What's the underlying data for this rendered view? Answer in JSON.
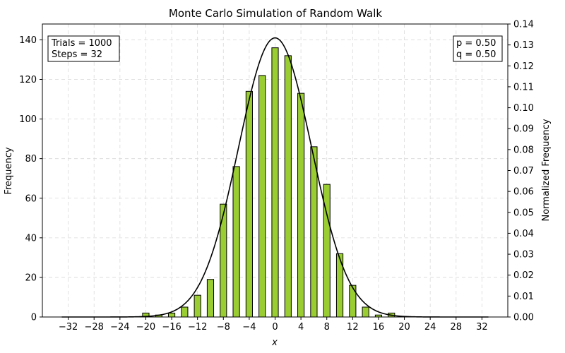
{
  "chart_data": {
    "type": "bar",
    "title": "Monte Carlo Simulation of Random Walk",
    "xlabel": "x",
    "ylabel": "Frequency",
    "ylabel_right": "Normalized Frequency",
    "xlim": [
      -36,
      36
    ],
    "ylim": [
      0,
      148
    ],
    "ylim_right": [
      0,
      0.14
    ],
    "x_ticks": [
      -32,
      -28,
      -24,
      -20,
      -16,
      -12,
      -8,
      -4,
      0,
      4,
      8,
      12,
      16,
      20,
      24,
      28,
      32
    ],
    "y_ticks": [
      0,
      20,
      40,
      60,
      80,
      100,
      120,
      140
    ],
    "y_ticks_right": [
      "0.00",
      "0.01",
      "0.02",
      "0.03",
      "0.04",
      "0.05",
      "0.06",
      "0.07",
      "0.08",
      "0.09",
      "0.10",
      "0.11",
      "0.12",
      "0.13",
      "0.14"
    ],
    "grid": true,
    "bar_color": "#9acd32",
    "curve_color": "#000000",
    "histogram": {
      "x": [
        -20,
        -18,
        -16,
        -14,
        -12,
        -10,
        -8,
        -6,
        -4,
        -2,
        0,
        2,
        4,
        6,
        8,
        10,
        12,
        14,
        16,
        18
      ],
      "values": [
        2,
        1,
        2,
        5,
        11,
        19,
        57,
        76,
        114,
        122,
        136,
        132,
        113,
        86,
        67,
        32,
        16,
        5,
        1,
        2
      ]
    },
    "gaussian_fit": {
      "mean": 0,
      "peak": 141,
      "sigma": 5.66,
      "x_range": [
        -33,
        33
      ]
    },
    "annotations": {
      "left": [
        "Trials = 1000",
        "Steps = 32"
      ],
      "right": [
        "p = 0.50",
        "q = 0.50"
      ]
    }
  }
}
